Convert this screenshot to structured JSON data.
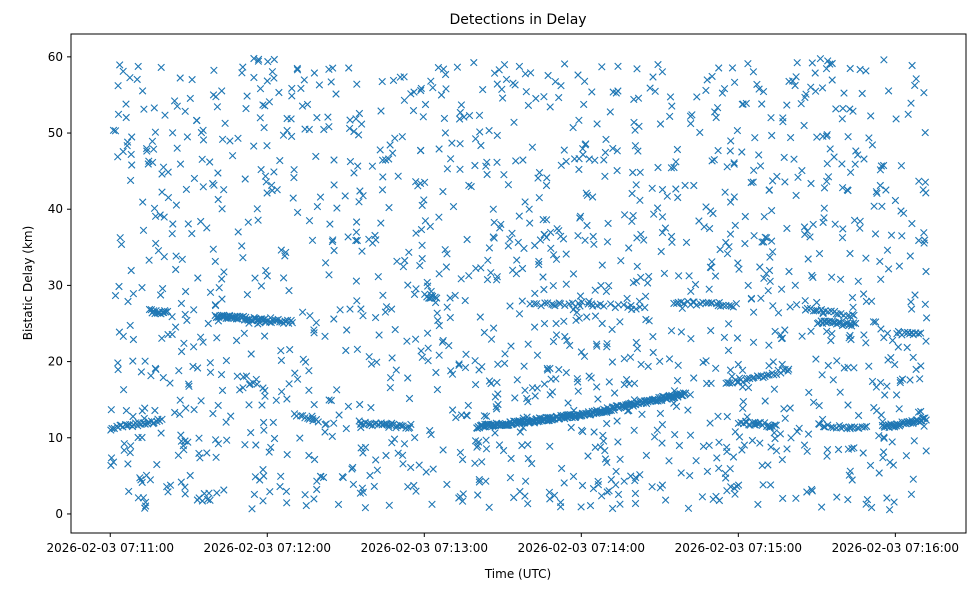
{
  "chart_data": {
    "type": "scatter",
    "title": "Detections in Delay",
    "xlabel": "Time (UTC)",
    "ylabel": "Bistatic Delay (km)",
    "marker": "x",
    "color": "#1f77b4",
    "grid": false,
    "xlim": [
      "2026-02-03 07:10:45",
      "2026-02-03 07:16:27"
    ],
    "ylim": [
      -2.5,
      63
    ],
    "x_ticks": [
      "2026-02-03 07:11:00",
      "2026-02-03 07:12:00",
      "2026-02-03 07:13:00",
      "2026-02-03 07:14:00",
      "2026-02-03 07:15:00",
      "2026-02-03 07:16:00"
    ],
    "y_ticks": [
      0,
      10,
      20,
      30,
      40,
      50,
      60
    ],
    "time_span": [
      "2026-02-03 07:11:00",
      "2026-02-03 07:16:12"
    ],
    "noise_detections": 1500,
    "noise_delay_range": [
      0.5,
      59.8
    ],
    "tracks": [
      {
        "start": "2026-02-03 07:11:00",
        "end": "2026-02-03 07:11:20",
        "delay": [
          11.2,
          12.3
        ],
        "count": 30
      },
      {
        "start": "2026-02-03 07:11:15",
        "end": "2026-02-03 07:11:22",
        "delay": [
          26.6,
          26.4
        ],
        "count": 15
      },
      {
        "start": "2026-02-03 07:11:40",
        "end": "2026-02-03 07:12:00",
        "delay": [
          26.0,
          25.4
        ],
        "count": 45
      },
      {
        "start": "2026-02-03 07:12:00",
        "end": "2026-02-03 07:12:10",
        "delay": [
          25.4,
          25.2
        ],
        "count": 15
      },
      {
        "start": "2026-02-03 07:12:10",
        "end": "2026-02-03 07:12:20",
        "delay": [
          13.0,
          12.2
        ],
        "count": 10
      },
      {
        "start": "2026-02-03 07:12:35",
        "end": "2026-02-03 07:12:55",
        "delay": [
          12.0,
          11.3
        ],
        "count": 25
      },
      {
        "start": "2026-02-03 07:13:00",
        "end": "2026-02-03 07:13:05",
        "delay": [
          28.6,
          28.4
        ],
        "count": 8
      },
      {
        "start": "2026-02-03 07:13:20",
        "end": "2026-02-03 07:14:00",
        "delay": [
          11.4,
          13.0
        ],
        "count": 130
      },
      {
        "start": "2026-02-03 07:14:00",
        "end": "2026-02-03 07:14:40",
        "delay": [
          13.0,
          15.8
        ],
        "count": 110
      },
      {
        "start": "2026-02-03 07:13:40",
        "end": "2026-02-03 07:14:00",
        "delay": [
          27.6,
          27.4
        ],
        "count": 15
      },
      {
        "start": "2026-02-03 07:14:00",
        "end": "2026-02-03 07:14:25",
        "delay": [
          27.6,
          27.0
        ],
        "count": 15
      },
      {
        "start": "2026-02-03 07:14:35",
        "end": "2026-02-03 07:15:00",
        "delay": [
          27.8,
          27.4
        ],
        "count": 25
      },
      {
        "start": "2026-02-03 07:14:55",
        "end": "2026-02-03 07:15:20",
        "delay": [
          17.0,
          19.0
        ],
        "count": 30
      },
      {
        "start": "2026-02-03 07:15:00",
        "end": "2026-02-03 07:15:15",
        "delay": [
          12.0,
          11.6
        ],
        "count": 20
      },
      {
        "start": "2026-02-03 07:15:25",
        "end": "2026-02-03 07:15:45",
        "delay": [
          27.0,
          26.0
        ],
        "count": 20
      },
      {
        "start": "2026-02-03 07:15:30",
        "end": "2026-02-03 07:15:50",
        "delay": [
          11.6,
          11.3
        ],
        "count": 20
      },
      {
        "start": "2026-02-03 07:15:30",
        "end": "2026-02-03 07:15:45",
        "delay": [
          25.2,
          24.8
        ],
        "count": 25
      },
      {
        "start": "2026-02-03 07:15:55",
        "end": "2026-02-03 07:16:12",
        "delay": [
          11.4,
          12.4
        ],
        "count": 40
      },
      {
        "start": "2026-02-03 07:16:00",
        "end": "2026-02-03 07:16:10",
        "delay": [
          23.8,
          23.6
        ],
        "count": 12
      }
    ]
  }
}
